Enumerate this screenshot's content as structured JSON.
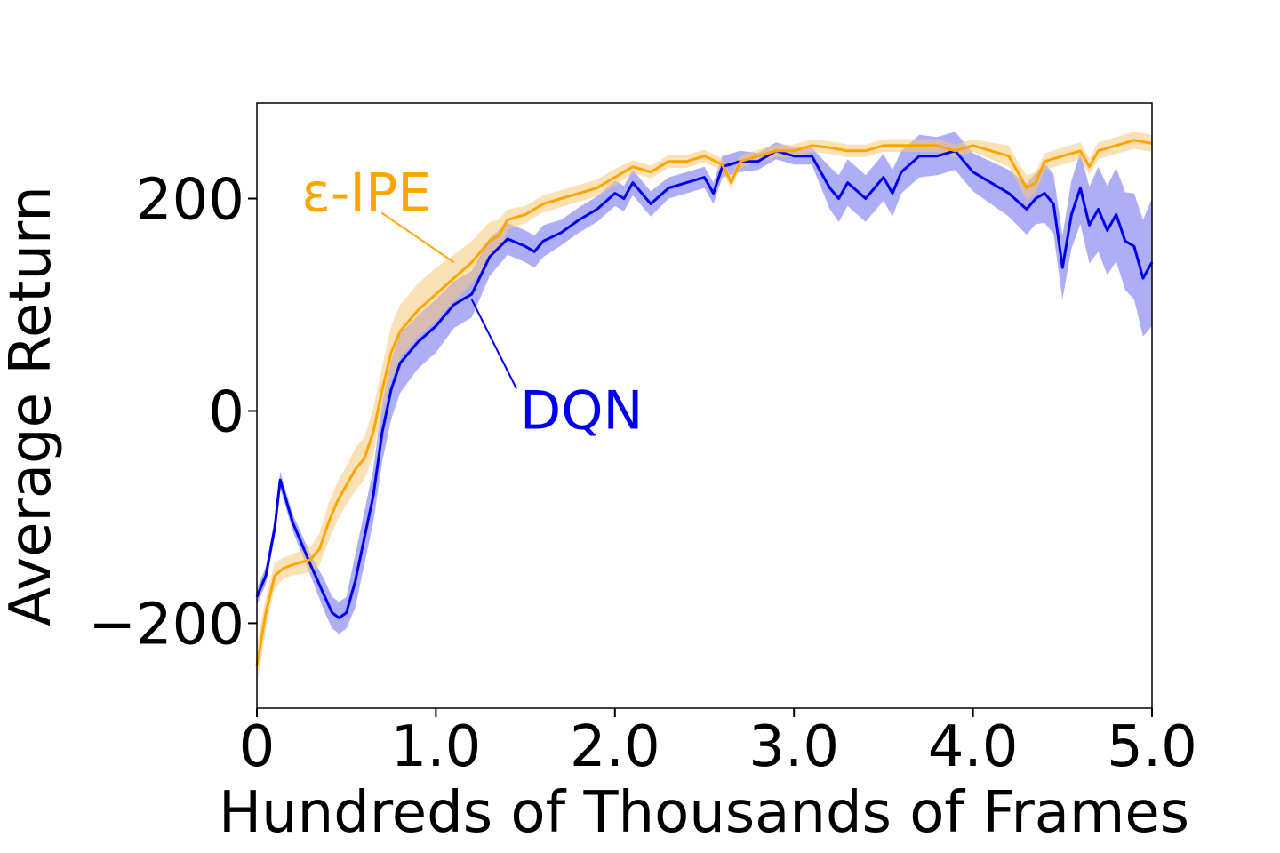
{
  "chart_data": {
    "type": "line",
    "title": "",
    "xlabel": "Hundreds of Thousands of Frames",
    "ylabel": "Average Return",
    "xlim": [
      0,
      5.0
    ],
    "ylim": [
      -280,
      290
    ],
    "x_ticks": [
      0,
      1.0,
      2.0,
      3.0,
      4.0,
      5.0
    ],
    "x_tick_labels": [
      "0",
      "1.0",
      "2.0",
      "3.0",
      "4.0",
      "5.0"
    ],
    "y_ticks": [
      -200,
      0,
      200
    ],
    "y_tick_labels": [
      "−200",
      "0",
      "200"
    ],
    "grid": false,
    "legend": "inline annotations",
    "series": [
      {
        "name": "DQN",
        "color": "#0000ee",
        "band_color": "#6b6bf0",
        "x": [
          0,
          0.05,
          0.1,
          0.13,
          0.2,
          0.3,
          0.38,
          0.42,
          0.46,
          0.5,
          0.55,
          0.6,
          0.65,
          0.7,
          0.75,
          0.8,
          0.9,
          1.0,
          1.1,
          1.2,
          1.3,
          1.4,
          1.5,
          1.55,
          1.6,
          1.7,
          1.8,
          1.9,
          2.0,
          2.05,
          2.1,
          2.2,
          2.3,
          2.4,
          2.5,
          2.55,
          2.6,
          2.7,
          2.8,
          2.9,
          3.0,
          3.1,
          3.2,
          3.25,
          3.3,
          3.4,
          3.5,
          3.55,
          3.6,
          3.7,
          3.8,
          3.9,
          4.0,
          4.1,
          4.2,
          4.3,
          4.35,
          4.4,
          4.45,
          4.5,
          4.55,
          4.6,
          4.65,
          4.7,
          4.75,
          4.8,
          4.85,
          4.9,
          4.95,
          5.0
        ],
        "y": [
          -175,
          -155,
          -110,
          -65,
          -105,
          -145,
          -175,
          -190,
          -195,
          -190,
          -160,
          -120,
          -80,
          -20,
          20,
          45,
          65,
          80,
          100,
          110,
          145,
          162,
          155,
          150,
          160,
          168,
          180,
          190,
          205,
          200,
          215,
          195,
          210,
          215,
          220,
          205,
          230,
          235,
          235,
          245,
          240,
          240,
          210,
          200,
          215,
          200,
          220,
          205,
          225,
          240,
          240,
          245,
          225,
          215,
          205,
          190,
          200,
          205,
          195,
          135,
          185,
          210,
          175,
          190,
          170,
          185,
          160,
          155,
          125,
          140
        ],
        "band": [
          8,
          8,
          8,
          8,
          8,
          10,
          15,
          15,
          15,
          15,
          25,
          25,
          25,
          28,
          28,
          28,
          25,
          25,
          22,
          22,
          18,
          15,
          15,
          15,
          15,
          12,
          12,
          12,
          12,
          12,
          12,
          12,
          10,
          10,
          10,
          10,
          10,
          10,
          8,
          8,
          8,
          8,
          20,
          22,
          22,
          22,
          22,
          22,
          20,
          20,
          18,
          18,
          18,
          20,
          22,
          24,
          24,
          28,
          28,
          30,
          32,
          34,
          36,
          40,
          42,
          44,
          46,
          50,
          55,
          60
        ]
      },
      {
        "name": "ε-IPE",
        "color": "#ffa500",
        "band_color": "#f8c87a",
        "x": [
          0,
          0.05,
          0.1,
          0.15,
          0.2,
          0.3,
          0.35,
          0.4,
          0.45,
          0.5,
          0.55,
          0.6,
          0.65,
          0.7,
          0.75,
          0.8,
          0.9,
          1.0,
          1.1,
          1.2,
          1.3,
          1.35,
          1.4,
          1.5,
          1.6,
          1.7,
          1.8,
          1.9,
          2.0,
          2.1,
          2.2,
          2.3,
          2.4,
          2.5,
          2.6,
          2.65,
          2.7,
          2.8,
          2.9,
          3.0,
          3.1,
          3.2,
          3.3,
          3.4,
          3.5,
          3.6,
          3.7,
          3.8,
          3.9,
          4.0,
          4.1,
          4.2,
          4.25,
          4.3,
          4.35,
          4.4,
          4.5,
          4.6,
          4.65,
          4.7,
          4.8,
          4.9,
          5.0
        ],
        "y": [
          -240,
          -190,
          -155,
          -148,
          -145,
          -140,
          -130,
          -105,
          -85,
          -70,
          -55,
          -45,
          -20,
          20,
          55,
          75,
          95,
          110,
          125,
          140,
          160,
          165,
          180,
          185,
          195,
          200,
          205,
          210,
          220,
          230,
          225,
          235,
          235,
          240,
          232,
          215,
          235,
          240,
          245,
          245,
          250,
          248,
          245,
          245,
          250,
          250,
          250,
          250,
          245,
          250,
          245,
          240,
          225,
          210,
          215,
          235,
          240,
          245,
          230,
          245,
          250,
          255,
          252
        ],
        "band": [
          20,
          15,
          12,
          10,
          10,
          12,
          15,
          18,
          18,
          18,
          20,
          20,
          22,
          22,
          25,
          25,
          25,
          25,
          22,
          20,
          18,
          15,
          10,
          8,
          8,
          8,
          8,
          8,
          8,
          6,
          6,
          6,
          6,
          6,
          6,
          6,
          6,
          6,
          6,
          6,
          6,
          6,
          6,
          6,
          6,
          6,
          6,
          6,
          6,
          6,
          8,
          10,
          10,
          12,
          10,
          8,
          8,
          8,
          8,
          8,
          8,
          8,
          8
        ]
      }
    ],
    "annotations": [
      {
        "text": "DQN",
        "color": "#0000ee",
        "text_x": 1.47,
        "text_y": 0,
        "point_x": 1.2,
        "point_y": 105
      },
      {
        "text": "ε-IPE",
        "color": "#ffa500",
        "text_x": 0.25,
        "text_y": 205,
        "point_x": 1.1,
        "point_y": 140
      }
    ]
  }
}
